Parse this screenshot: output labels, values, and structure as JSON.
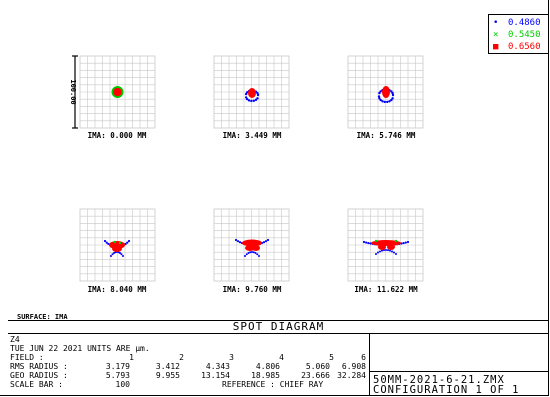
{
  "legend": {
    "items": [
      {
        "symbol": "•",
        "value": "0.4860",
        "color": "#0000ff"
      },
      {
        "symbol": "×",
        "value": "0.5450",
        "color": "#00cc00"
      },
      {
        "symbol": "■",
        "value": "0.6560",
        "color": "#ff0000"
      }
    ]
  },
  "scale_bar_label": "100.00",
  "ima_labels": [
    "IMA: 0.000 MM",
    "IMA: 3.449 MM",
    "IMA: 5.746 MM",
    "IMA: 8.040 MM",
    "IMA: 9.760 MM",
    "IMA: 11.622 MM"
  ],
  "surface_label": "SURFACE: IMA",
  "title": "SPOT DIAGRAM",
  "info": {
    "line1": "Z4",
    "date_line": "TUE JUN 22 2021   UNITS ARE µm.",
    "field_label": "FIELD    :",
    "rms_label": "RMS RADIUS :",
    "geo_label": "GEO RADIUS :",
    "scale_label": "SCALE BAR  :",
    "fields": [
      "1",
      "2",
      "3",
      "4",
      "5",
      "6"
    ],
    "rms": [
      "3.179",
      "3.412",
      "4.343",
      "4.806",
      "5.060",
      "6.908"
    ],
    "geo": [
      "5.793",
      "9.955",
      "13.154",
      "18.985",
      "23.666",
      "32.284"
    ],
    "scale_value": "100",
    "reference": "REFERENCE  : CHIEF RAY"
  },
  "file": {
    "name": "50MM-2021-6-21.ZMX",
    "config": "CONFIGURATION 1 OF 1"
  },
  "colors": {
    "blue": "#0000ff",
    "green": "#00cc00",
    "red": "#ff0000",
    "grid": "#c8c8c8"
  }
}
